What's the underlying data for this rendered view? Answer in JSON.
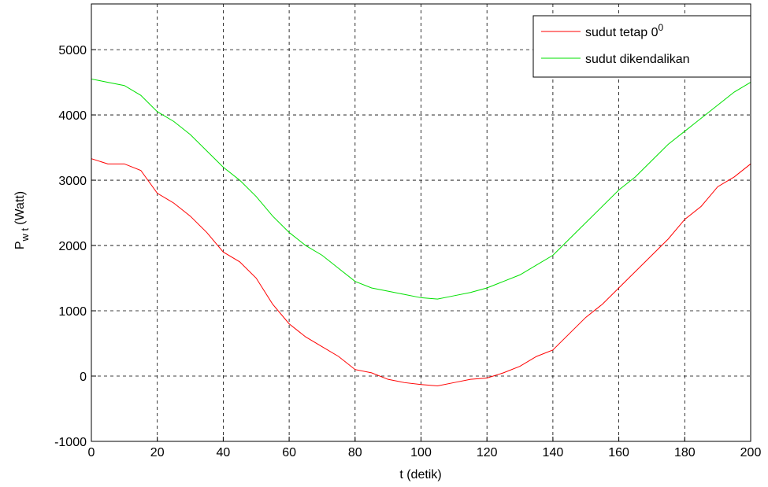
{
  "chart_data": {
    "type": "line",
    "xlabel": "t (detik)",
    "ylabel_main": "P",
    "ylabel_sub": "w t",
    "ylabel_unit": "(Watt)",
    "x": [
      0,
      5,
      10,
      15,
      20,
      25,
      30,
      35,
      40,
      45,
      50,
      55,
      60,
      65,
      70,
      75,
      80,
      85,
      90,
      95,
      100,
      105,
      110,
      115,
      120,
      125,
      130,
      135,
      140,
      145,
      150,
      155,
      160,
      165,
      170,
      175,
      180,
      185,
      190,
      195,
      200
    ],
    "series": [
      {
        "name": "sudut tetap 0",
        "name_sup": "0",
        "color": "#ff0000",
        "values": [
          3330,
          3250,
          3250,
          3150,
          2800,
          2650,
          2450,
          2200,
          1900,
          1750,
          1500,
          1100,
          800,
          600,
          450,
          300,
          100,
          50,
          -50,
          -100,
          -130,
          -150,
          -100,
          -50,
          -30,
          50,
          150,
          300,
          400,
          650,
          900,
          1100,
          1350,
          1600,
          1850,
          2100,
          2400,
          2600,
          2900,
          3050,
          3250
        ]
      },
      {
        "name": "sudut dikendalikan",
        "color": "#00e000",
        "values": [
          4550,
          4500,
          4450,
          4300,
          4050,
          3900,
          3700,
          3450,
          3200,
          3000,
          2750,
          2450,
          2200,
          2000,
          1850,
          1650,
          1450,
          1350,
          1300,
          1250,
          1200,
          1180,
          1230,
          1280,
          1350,
          1450,
          1550,
          1700,
          1850,
          2100,
          2350,
          2600,
          2850,
          3050,
          3300,
          3550,
          3750,
          3950,
          4150,
          4350,
          4500
        ]
      }
    ],
    "xlim": [
      0,
      200
    ],
    "xticks": [
      0,
      20,
      40,
      60,
      80,
      100,
      120,
      140,
      160,
      180,
      200
    ],
    "ylim": [
      -1000,
      5700
    ],
    "yticks": [
      -1000,
      0,
      1000,
      2000,
      3000,
      4000,
      5000
    ],
    "grid": true,
    "legend": "top-right"
  }
}
